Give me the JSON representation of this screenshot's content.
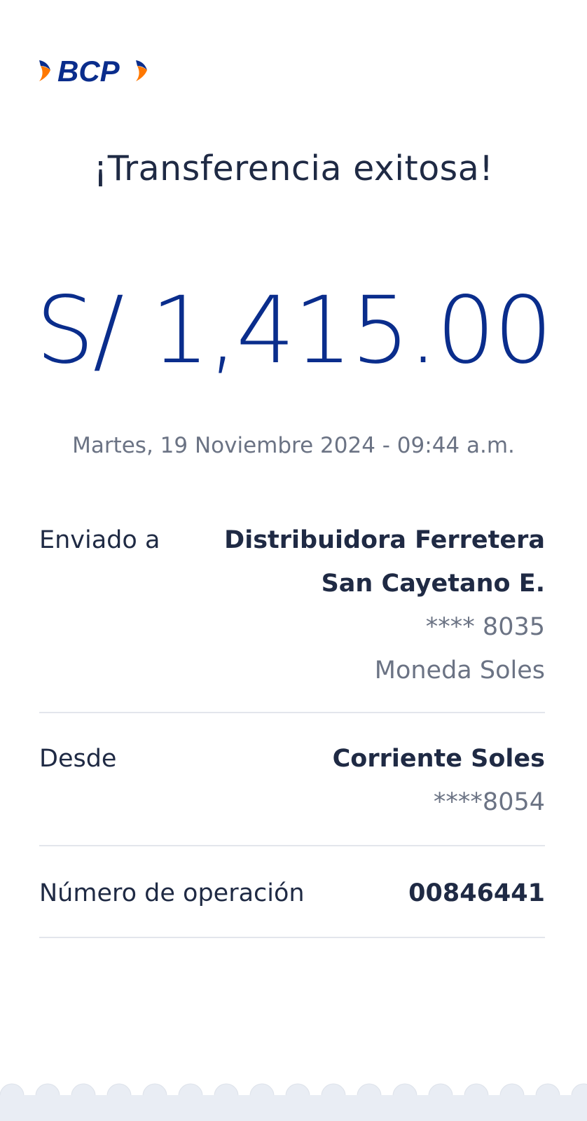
{
  "brand": {
    "logo_text": "BCP",
    "colors": {
      "blue": "#0a2d8c",
      "orange": "#ff7800"
    }
  },
  "title": "¡Transferencia exitosa!",
  "amount": "S/ 1,415.00",
  "datetime": "Martes, 19 Noviembre 2024 - 09:44 a.m.",
  "details": [
    {
      "label": "Enviado a",
      "values": [
        "Distribuidora Ferretera",
        "San Cayetano E.",
        "**** 8035",
        "Moneda Soles"
      ]
    },
    {
      "label": "Desde",
      "values": [
        "Corriente Soles",
        "****8054"
      ]
    },
    {
      "label": "Número de operación",
      "values": [
        "00846441"
      ]
    }
  ]
}
